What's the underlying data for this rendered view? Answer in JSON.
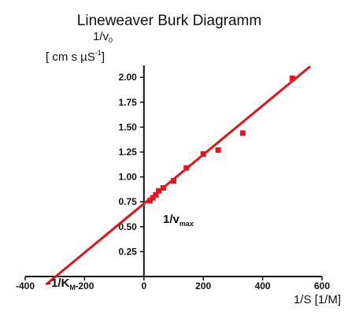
{
  "chart_data": {
    "type": "scatter",
    "title": "Lineweaver Burk Diagramm",
    "xlabel": "1/S [1/M]",
    "ylabel": {
      "line1_main": "1/v",
      "line1_sub": "0",
      "line2_main": "[ cm s µS",
      "line2_sup": "-1",
      "line2_end": "]"
    },
    "xlim": [
      -400,
      600
    ],
    "ylim": [
      0,
      2.12
    ],
    "x_ticks": [
      -400,
      -200,
      0,
      200,
      400,
      600
    ],
    "x_tick_labels": [
      "-400",
      "-200",
      "0",
      "200",
      "400",
      "600"
    ],
    "y_ticks": [
      0.25,
      0.5,
      0.75,
      1.0,
      1.25,
      1.5,
      1.75,
      2.0
    ],
    "y_tick_labels": [
      "0.25",
      "0.50",
      "0.75",
      "1.00",
      "1.25",
      "1.50",
      "1.75",
      "2.00"
    ],
    "grid": false,
    "colors": {
      "data": "#e8141c",
      "axis": "#111111"
    },
    "series": [
      {
        "marker": "square",
        "x": [
          20,
          30,
          40,
          50,
          65,
          100,
          143,
          200,
          250,
          333,
          500
        ],
        "y": [
          0.76,
          0.79,
          0.82,
          0.86,
          0.89,
          0.96,
          1.09,
          1.23,
          1.27,
          1.44,
          1.99
        ]
      }
    ],
    "fit_line": {
      "x": [
        -330,
        560
      ],
      "y": [
        -0.08,
        2.11
      ]
    },
    "annotations": {
      "vmax": {
        "main": "1/v",
        "sub": "max",
        "x": 40,
        "y": 0.58
      },
      "km": {
        "main": "-1/K",
        "sub": "M",
        "x": -300,
        "y": -0.06
      }
    }
  }
}
